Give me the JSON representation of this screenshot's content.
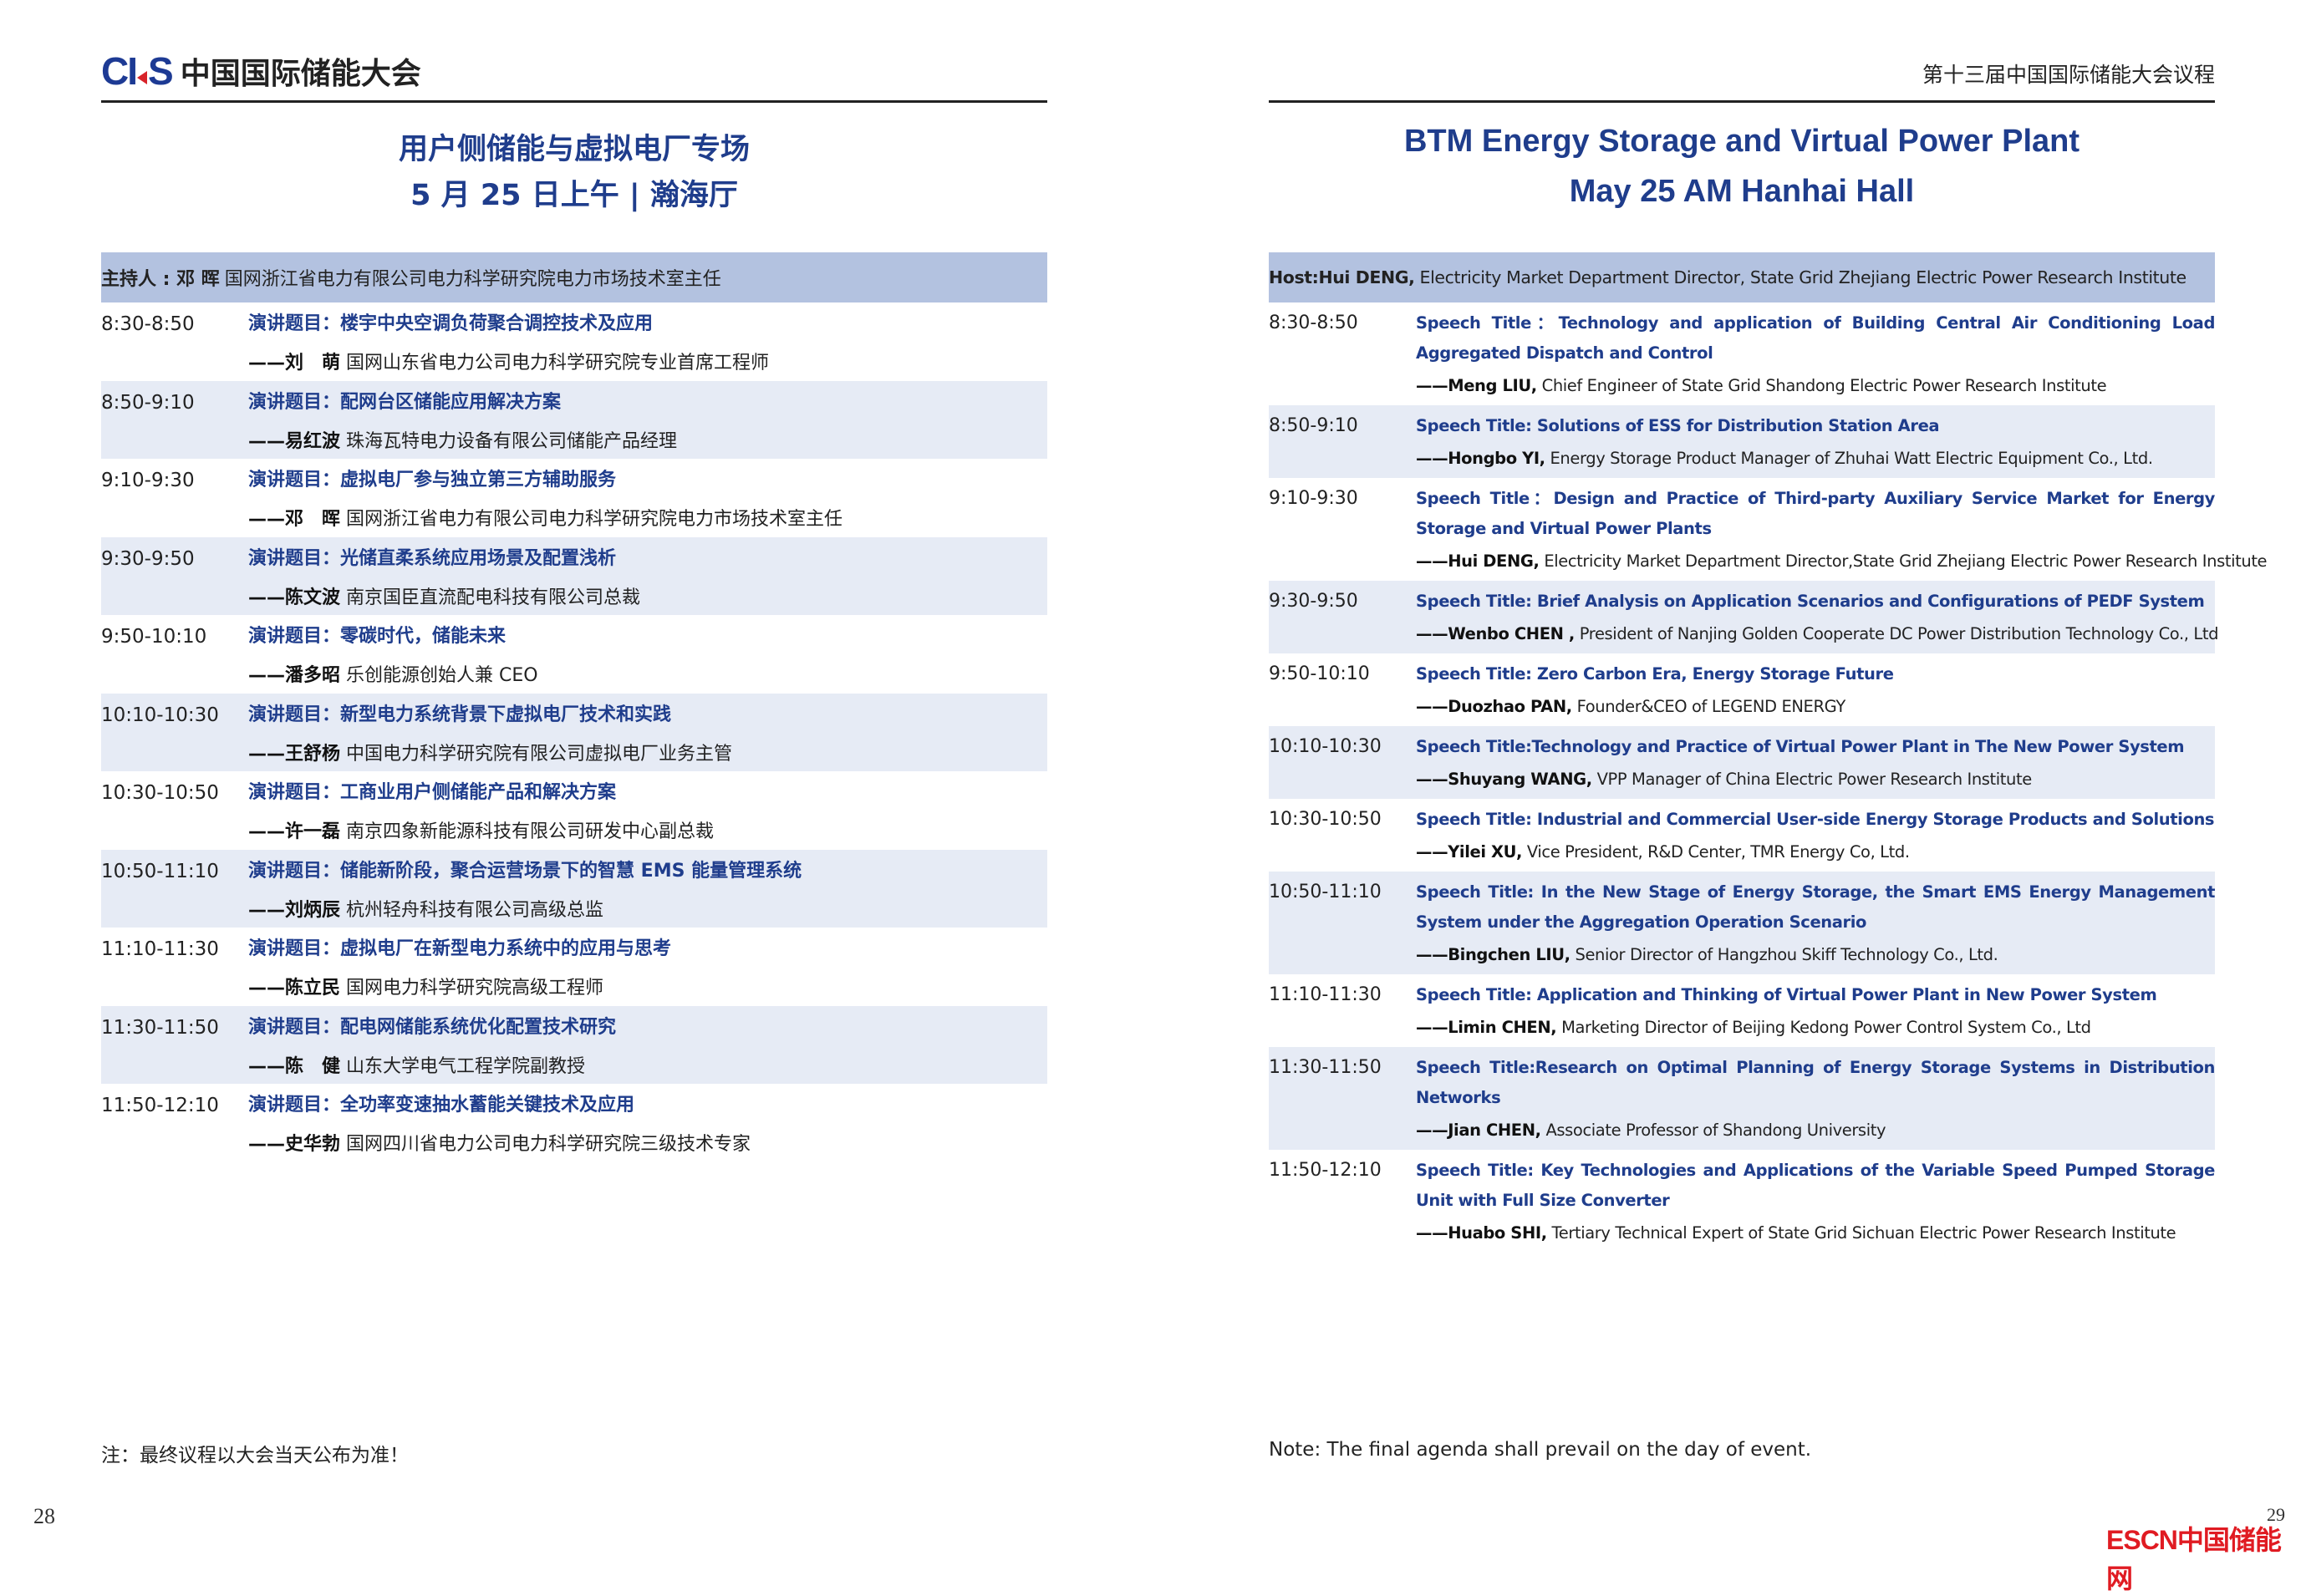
{
  "left": {
    "logo": {
      "mark": "CIES",
      "text": "中国国际储能大会"
    },
    "title_line1": "用户侧储能与虚拟电厂专场",
    "title_line2": "5 月 25 日上午 | 瀚海厅",
    "host": {
      "label": "主持人 : 邓  晖",
      "detail": "国网浙江省电力有限公司电力科学研究院电力市场技术室主任"
    },
    "sessions": [
      {
        "time": "8:30-8:50",
        "title": "演讲题目：楼宇中央空调负荷聚合调控技术及应用",
        "speaker": "——刘　萌",
        "affil": "国网山东省电力公司电力科学研究院专业首席工程师"
      },
      {
        "time": "8:50-9:10",
        "title": "演讲题目：配网台区储能应用解决方案",
        "speaker": "——易红波",
        "affil": "珠海瓦特电力设备有限公司储能产品经理"
      },
      {
        "time": "9:10-9:30",
        "title": "演讲题目：虚拟电厂参与独立第三方辅助服务",
        "speaker": "——邓　晖",
        "affil": "国网浙江省电力有限公司电力科学研究院电力市场技术室主任"
      },
      {
        "time": "9:30-9:50",
        "title": "演讲题目：光储直柔系统应用场景及配置浅析",
        "speaker": "——陈文波",
        "affil": "南京国臣直流配电科技有限公司总裁"
      },
      {
        "time": "9:50-10:10",
        "title": "演讲题目：零碳时代，储能未来",
        "speaker": "——潘多昭",
        "affil": "乐创能源创始人兼 CEO"
      },
      {
        "time": "10:10-10:30",
        "title": "演讲题目：新型电力系统背景下虚拟电厂技术和实践",
        "speaker": "——王舒杨",
        "affil": "中国电力科学研究院有限公司虚拟电厂业务主管"
      },
      {
        "time": "10:30-10:50",
        "title": "演讲题目：工商业用户侧储能产品和解决方案",
        "speaker": "——许一磊",
        "affil": "南京四象新能源科技有限公司研发中心副总裁"
      },
      {
        "time": "10:50-11:10",
        "title": "演讲题目：储能新阶段，聚合运营场景下的智慧 EMS 能量管理系统",
        "speaker": "——刘炳辰",
        "affil": "杭州轻舟科技有限公司高级总监"
      },
      {
        "time": "11:10-11:30",
        "title": "演讲题目：虚拟电厂在新型电力系统中的应用与思考",
        "speaker": "——陈立民",
        "affil": "国网电力科学研究院高级工程师"
      },
      {
        "time": "11:30-11:50",
        "title": "演讲题目：配电网储能系统优化配置技术研究",
        "speaker": "——陈　健",
        "affil": "山东大学电气工程学院副教授"
      },
      {
        "time": "11:50-12:10",
        "title": "演讲题目：全功率变速抽水蓄能关键技术及应用",
        "speaker": "——史华勃",
        "affil": "国网四川省电力公司电力科学研究院三级技术专家"
      }
    ],
    "note": "注：最终议程以大会当天公布为准！",
    "page_number": "28"
  },
  "right": {
    "header": "第十三届中国国际储能大会议程",
    "title_line1": "BTM Energy Storage and Virtual Power Plant",
    "title_line2": "May 25 AM  Hanhai Hall",
    "host": {
      "label": "Host:Hui DENG,",
      "detail": "Electricity Market Department Director, State Grid Zhejiang Electric Power Research Institute"
    },
    "sessions": [
      {
        "time": "8:30-8:50",
        "title": "Speech Title：Technology and application of Building Central Air Conditioning Load Aggregated Dispatch and Control",
        "speaker": "——Meng LIU,",
        "affil": "Chief Engineer of State Grid Shandong Electric Power Research Institute"
      },
      {
        "time": "8:50-9:10",
        "title": "Speech Title: Solutions of ESS for Distribution Station Area",
        "speaker": "——Hongbo YI,",
        "affil": "Energy Storage Product Manager of Zhuhai Watt Electric Equipment Co., Ltd."
      },
      {
        "time": "9:10-9:30",
        "title": "Speech Title：Design and Practice of Third-party Auxiliary Service Market for Energy Storage and Virtual Power Plants",
        "speaker": "——Hui DENG,",
        "affil": "Electricity Market Department Director,State Grid Zhejiang Electric Power Research Institute"
      },
      {
        "time": "9:30-9:50",
        "title": "Speech Title: Brief Analysis on Application Scenarios and Configurations of PEDF System",
        "speaker": "——Wenbo CHEN ,",
        "affil": "President of Nanjing Golden Cooperate DC Power Distribution Technology Co., Ltd"
      },
      {
        "time": "9:50-10:10",
        "title": "Speech Title: Zero Carbon Era, Energy Storage Future",
        "speaker": "——Duozhao PAN,",
        "affil": "Founder&CEO of LEGEND ENERGY"
      },
      {
        "time": "10:10-10:30",
        "title": "Speech Title:Technology and Practice of Virtual Power Plant in The New Power System",
        "speaker": "——Shuyang WANG,",
        "affil": "VPP Manager of China Electric Power Research Institute"
      },
      {
        "time": "10:30-10:50",
        "title": "Speech Title: Industrial and Commercial User-side Energy Storage Products and Solutions",
        "speaker": "——Yilei XU,",
        "affil": "Vice President, R&D Center, TMR Energy Co, Ltd."
      },
      {
        "time": "10:50-11:10",
        "title": "Speech Title: In the New Stage of Energy Storage, the Smart EMS Energy Management System under the Aggregation Operation Scenario",
        "speaker": "——Bingchen LIU,",
        "affil": "Senior Director of Hangzhou Skiff Technology Co., Ltd."
      },
      {
        "time": "11:10-11:30",
        "title": "Speech Title: Application and Thinking of Virtual Power Plant in New Power System",
        "speaker": "——Limin CHEN,",
        "affil": "Marketing Director of Beijing Kedong Power Control System Co., Ltd"
      },
      {
        "time": "11:30-11:50",
        "title": "Speech Title:Research on Optimal Planning of Energy Storage Systems in Distribution Networks",
        "speaker": "——Jian CHEN,",
        "affil": "Associate Professor of Shandong University"
      },
      {
        "time": "11:50-12:10",
        "title": "Speech Title: Key Technologies and Applications of the Variable Speed Pumped Storage Unit with Full Size Converter",
        "speaker": "——Huabo SHI,",
        "affil": "Tertiary Technical Expert of State Grid Sichuan Electric Power Research Institute"
      }
    ],
    "note": "Note: The final agenda shall prevail on the day of event.",
    "page_number": "29"
  },
  "watermark": "ESCN中国储能网",
  "colors": {
    "title_blue": "#1f3d8c",
    "host_bar": "#b3c2e0",
    "row_shade": "#e6ebf5",
    "logo_blue": "#1d3a94",
    "watermark_red": "#e01b22"
  }
}
